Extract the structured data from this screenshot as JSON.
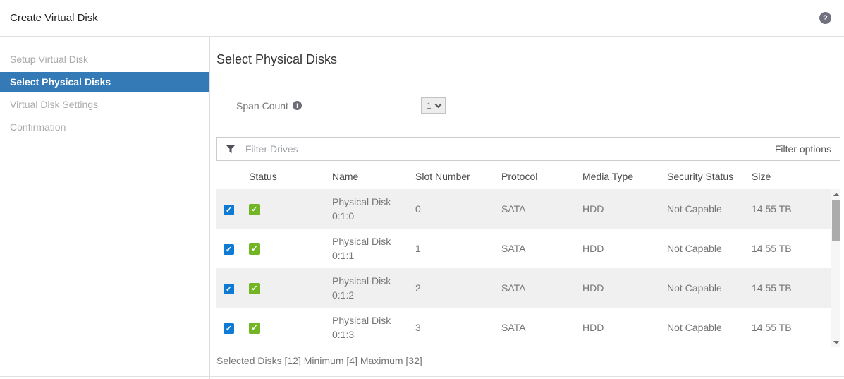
{
  "header": {
    "title": "Create Virtual Disk",
    "help_glyph": "?"
  },
  "sidebar": {
    "items": [
      {
        "label": "Setup Virtual Disk",
        "active": false
      },
      {
        "label": "Select Physical Disks",
        "active": true
      },
      {
        "label": "Virtual Disk Settings",
        "active": false
      },
      {
        "label": "Confirmation",
        "active": false
      }
    ]
  },
  "main": {
    "heading": "Select Physical Disks",
    "span_count": {
      "label": "Span Count",
      "info_glyph": "i",
      "value": "1"
    },
    "filter": {
      "placeholder": "Filter Drives",
      "options_label": "Filter options"
    },
    "table": {
      "columns": [
        "Status",
        "Name",
        "Slot Number",
        "Protocol",
        "Media Type",
        "Security Status",
        "Size"
      ],
      "check_glyph": "✓",
      "rows": [
        {
          "checked": true,
          "status": "ok",
          "name": "Physical Disk 0:1:0",
          "slot": "0",
          "protocol": "SATA",
          "media_type": "HDD",
          "security_status": "Not Capable",
          "size": "14.55 TB"
        },
        {
          "checked": true,
          "status": "ok",
          "name": "Physical Disk 0:1:1",
          "slot": "1",
          "protocol": "SATA",
          "media_type": "HDD",
          "security_status": "Not Capable",
          "size": "14.55 TB"
        },
        {
          "checked": true,
          "status": "ok",
          "name": "Physical Disk 0:1:2",
          "slot": "2",
          "protocol": "SATA",
          "media_type": "HDD",
          "security_status": "Not Capable",
          "size": "14.55 TB"
        },
        {
          "checked": true,
          "status": "ok",
          "name": "Physical Disk 0:1:3",
          "slot": "3",
          "protocol": "SATA",
          "media_type": "HDD",
          "security_status": "Not Capable",
          "size": "14.55 TB"
        }
      ]
    },
    "summary": "Selected Disks [12] Minimum [4] Maximum [32]"
  },
  "colors": {
    "accent_active_step": "#337ab7",
    "checkbox_blue": "#0d7ad4",
    "status_green": "#72b626",
    "row_alt_bg": "#f0f0f0",
    "body_text": "#757575"
  }
}
